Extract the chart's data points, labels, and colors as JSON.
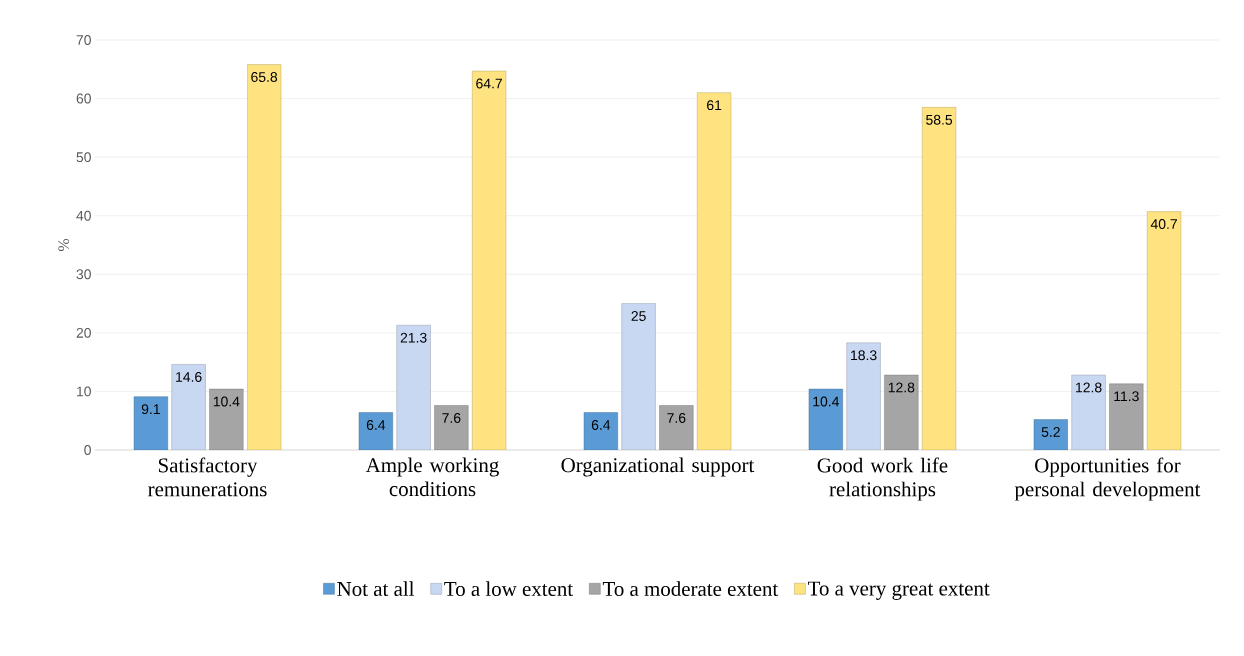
{
  "chart_data": {
    "type": "bar",
    "ylabel": "%",
    "categories": [
      "Satisfactory remunerations",
      "Ample working conditions",
      "Organizational support",
      "Good work life relationships",
      "Opportunities for personal development"
    ],
    "series": [
      {
        "name": "Not at all",
        "color": "#5b9bd5",
        "values": [
          9.1,
          6.4,
          6.4,
          10.4,
          5.2
        ]
      },
      {
        "name": "To a low extent",
        "color": "#c9d8f2",
        "values": [
          14.6,
          21.3,
          25,
          18.3,
          12.8
        ]
      },
      {
        "name": "To a moderate extent",
        "color": "#a5a5a5",
        "values": [
          10.4,
          7.6,
          7.6,
          12.8,
          11.3
        ]
      },
      {
        "name": "To a very great extent",
        "color": "#ffe380",
        "values": [
          65.8,
          64.7,
          61,
          58.5,
          40.7
        ]
      }
    ],
    "ylim": [
      0,
      70
    ],
    "yticks": [
      0,
      10,
      20,
      30,
      40,
      50,
      60,
      70
    ],
    "grid": "y",
    "legend": "bottom",
    "data_labels": true
  }
}
